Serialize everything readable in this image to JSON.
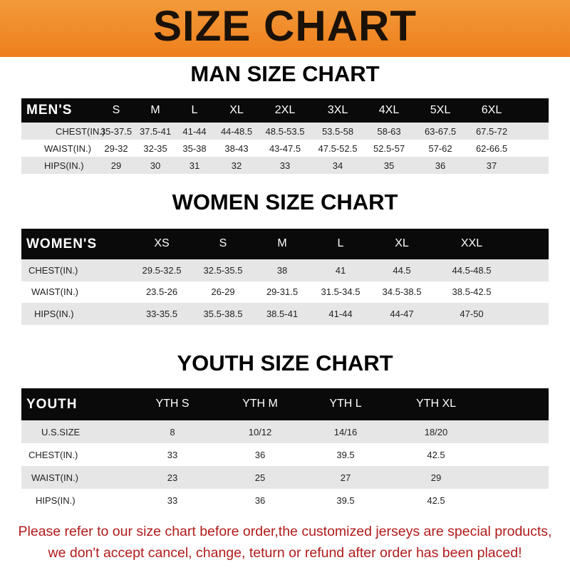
{
  "title": "SIZE CHART",
  "men": {
    "title": "MAN SIZE CHART",
    "header": [
      "MEN'S",
      "S",
      "M",
      "L",
      "XL",
      "2XL",
      "3XL",
      "4XL",
      "5XL",
      "6XL"
    ],
    "rows": [
      [
        "CHEST(IN.)",
        "35-37.5",
        "37.5-41",
        "41-44",
        "44-48.5",
        "48.5-53.5",
        "53.5-58",
        "58-63",
        "63-67.5",
        "67.5-72"
      ],
      [
        "WAIST(IN.)",
        "29-32",
        "32-35",
        "35-38",
        "38-43",
        "43-47.5",
        "47.5-52.5",
        "52.5-57",
        "57-62",
        "62-66.5"
      ],
      [
        "HIPS(IN.)",
        "29",
        "30",
        "31",
        "32",
        "33",
        "34",
        "35",
        "36",
        "37"
      ]
    ]
  },
  "women": {
    "title": "WOMEN SIZE CHART",
    "header": [
      "WOMEN'S",
      "XS",
      "S",
      "M",
      "L",
      "XL",
      "XXL"
    ],
    "rows": [
      [
        "CHEST(IN.)",
        "29.5-32.5",
        "32.5-35.5",
        "38",
        "41",
        "44.5",
        "44.5-48.5"
      ],
      [
        "WAIST(IN.)",
        "23.5-26",
        "26-29",
        "29-31.5",
        "31.5-34.5",
        "34.5-38.5",
        "38.5-42.5"
      ],
      [
        "HIPS(IN.)",
        "33-35.5",
        "35.5-38.5",
        "38.5-41",
        "41-44",
        "44-47",
        "47-50"
      ]
    ]
  },
  "youth": {
    "title": "YOUTH SIZE CHART",
    "header": [
      "YOUTH",
      "YTH S",
      "YTH M",
      "YTH L",
      "YTH XL"
    ],
    "rows": [
      [
        "U.S.SIZE",
        "8",
        "10/12",
        "14/16",
        "18/20"
      ],
      [
        "CHEST(IN.)",
        "33",
        "36",
        "39.5",
        "42.5"
      ],
      [
        "WAIST(IN.)",
        "23",
        "25",
        "27",
        "29"
      ],
      [
        "HIPS(IN.)",
        "33",
        "36",
        "39.5",
        "42.5"
      ]
    ]
  },
  "footer": [
    "Please refer to our size chart before order,the customized jerseys are special products,",
    "we don't accept cancel, change, teturn or refund after order has been placed!"
  ],
  "colors": {
    "banner": "#ee7f1c",
    "header_row": "#0a0a0a",
    "stripe": "#e6e6e6",
    "notice": "#b11b1b"
  }
}
